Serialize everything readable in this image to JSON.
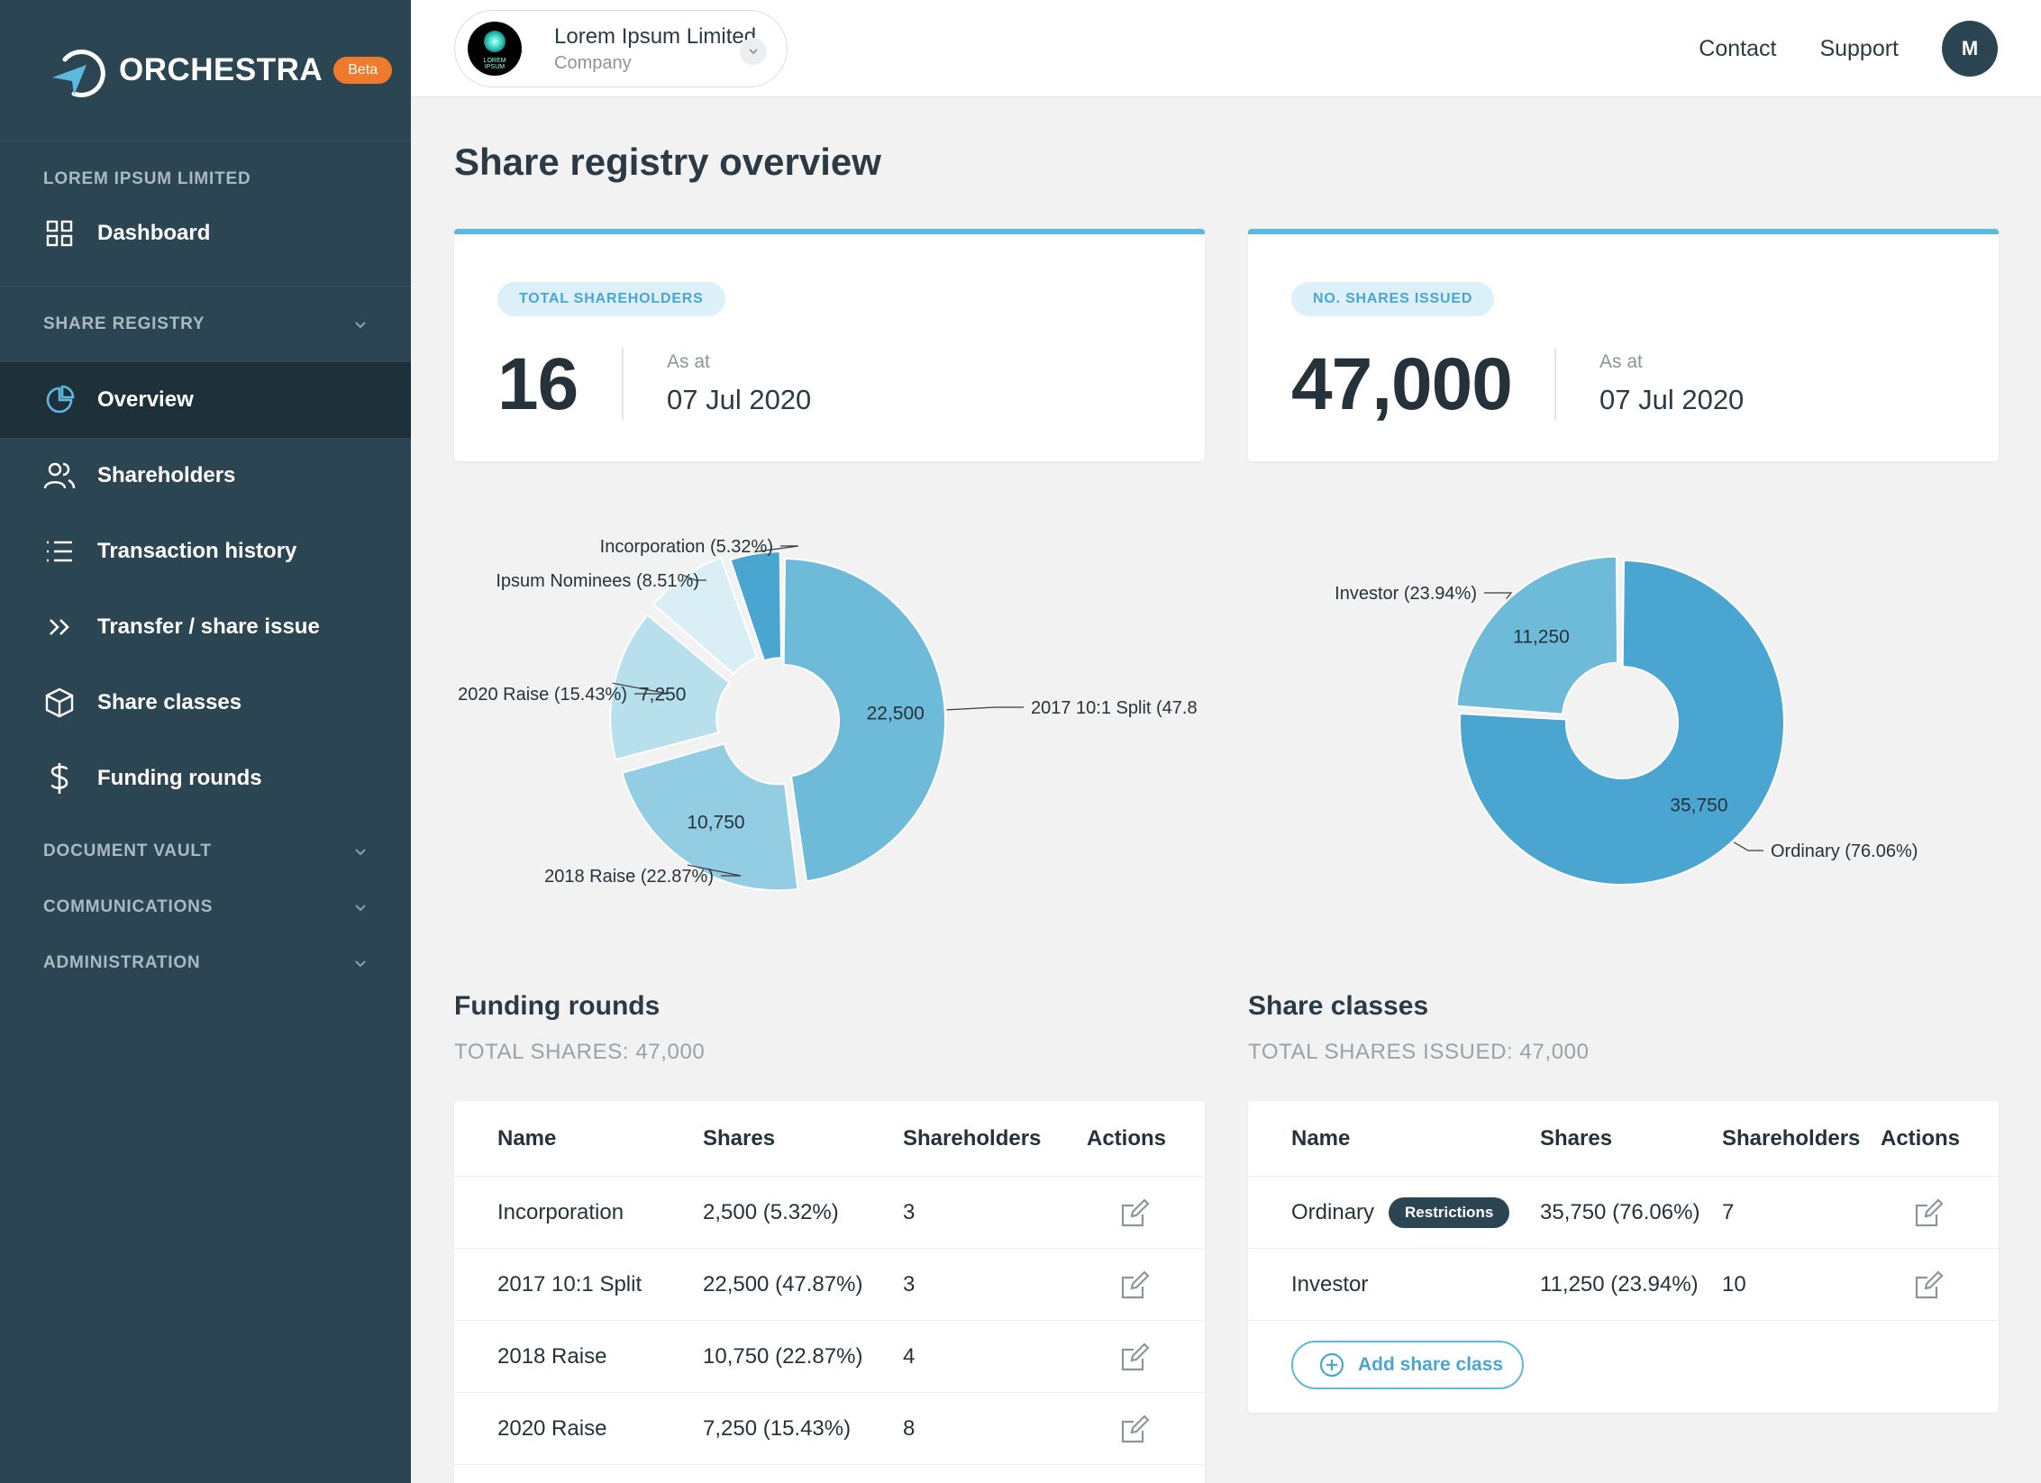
{
  "brand": {
    "name": "ORCHESTRA",
    "badge": "Beta"
  },
  "sidebar": {
    "company_label": "LOREM IPSUM LIMITED",
    "dashboard": "Dashboard",
    "share_registry_label": "SHARE REGISTRY",
    "items": [
      {
        "label": "Overview",
        "icon": "pie-chart-icon",
        "active": true
      },
      {
        "label": "Shareholders",
        "icon": "users-icon"
      },
      {
        "label": "Transaction history",
        "icon": "list-icon"
      },
      {
        "label": "Transfer / share issue",
        "icon": "double-chevron-right-icon"
      },
      {
        "label": "Share classes",
        "icon": "cube-icon"
      },
      {
        "label": "Funding rounds",
        "icon": "dollar-icon"
      }
    ],
    "document_vault": "DOCUMENT VAULT",
    "communications": "COMMUNICATIONS",
    "administration": "ADMINISTRATION"
  },
  "topbar": {
    "company_name": "Lorem Ipsum Limited",
    "company_type": "Company",
    "company_logo_text": "LOREM IPSUM",
    "contact": "Contact",
    "support": "Support",
    "avatar_initial": "M"
  },
  "page": {
    "title": "Share registry overview"
  },
  "stats": {
    "shareholders": {
      "label": "TOTAL SHAREHOLDERS",
      "value": "16",
      "as_at": "As at",
      "date": "07 Jul 2020"
    },
    "shares": {
      "label": "NO. SHARES ISSUED",
      "value": "47,000",
      "as_at": "As at",
      "date": "07 Jul 2020"
    }
  },
  "chart_data": [
    {
      "type": "pie",
      "variant": "donut",
      "categories": [
        "2017 10:1 Split",
        "2018 Raise",
        "2020 Raise",
        "Ipsum Nominees",
        "Incorporation"
      ],
      "values": [
        22500,
        10750,
        7250,
        4000,
        2500
      ],
      "value_labels": [
        "22,500",
        "10,750",
        "7,250",
        "",
        ""
      ],
      "callouts": [
        "2017 10:1 Split (47.8",
        "2018 Raise (22.87%)",
        "2020 Raise (15.43%)",
        "Ipsum Nominees (8.51%)",
        "Incorporation (5.32%)"
      ],
      "colors": [
        "#6dbad9",
        "#93cde3",
        "#b7dfec",
        "#d9eef5",
        "#4aa6d0"
      ]
    },
    {
      "type": "pie",
      "variant": "donut",
      "categories": [
        "Ordinary",
        "Investor"
      ],
      "values": [
        35750,
        11250
      ],
      "value_labels": [
        "35,750",
        "11,250"
      ],
      "callouts": [
        "Ordinary (76.06%)",
        "Investor (23.94%)"
      ],
      "colors": [
        "#4aa6d0",
        "#6dbad9"
      ]
    }
  ],
  "funding_rounds": {
    "title": "Funding rounds",
    "subtitle": "TOTAL SHARES: 47,000",
    "headers": [
      "Name",
      "Shares",
      "Shareholders",
      "Actions"
    ],
    "rows": [
      {
        "name": "Incorporation",
        "shares": "2,500 (5.32%)",
        "holders": "3"
      },
      {
        "name": "2017 10:1 Split",
        "shares": "22,500 (47.87%)",
        "holders": "3"
      },
      {
        "name": "2018 Raise",
        "shares": "10,750 (22.87%)",
        "holders": "4"
      },
      {
        "name": "2020 Raise",
        "shares": "7,250 (15.43%)",
        "holders": "8"
      }
    ]
  },
  "share_classes": {
    "title": "Share classes",
    "subtitle": "TOTAL SHARES ISSUED: 47,000",
    "headers": [
      "Name",
      "Shares",
      "Shareholders",
      "Actions"
    ],
    "rows": [
      {
        "name": "Ordinary",
        "badge": "Restrictions",
        "shares": "35,750 (76.06%)",
        "holders": "7"
      },
      {
        "name": "Investor",
        "badge": "",
        "shares": "11,250 (23.94%)",
        "holders": "10"
      }
    ],
    "add_button": "Add share class"
  }
}
